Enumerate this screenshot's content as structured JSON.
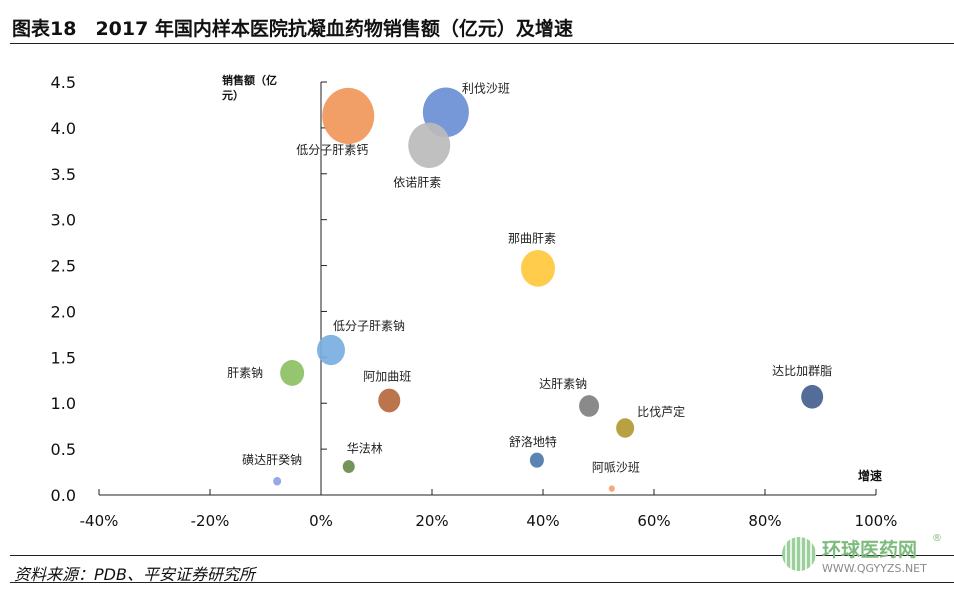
{
  "header": {
    "title": "图表18　2017 年国内样本医院抗凝血药物销售额（亿元）及增速"
  },
  "footer": {
    "source": "资料来源：PDB、平安证券研究所"
  },
  "watermark": {
    "name": "环球医药网",
    "url": "WWW.QGYYZS.NET",
    "reg": "®"
  },
  "chart_data": {
    "type": "scatter",
    "subtype": "bubble",
    "title": "",
    "xlabel": "增速",
    "ylabel": "销售额（亿元）",
    "ylabel_lines": [
      "销售额（亿",
      "元）"
    ],
    "xlim": [
      -0.4,
      1.0
    ],
    "ylim": [
      0,
      4.5
    ],
    "xticks": [
      "-40%",
      "-20%",
      "0%",
      "20%",
      "40%",
      "60%",
      "80%",
      "100%"
    ],
    "xtick_values": [
      -0.4,
      -0.2,
      0,
      0.2,
      0.4,
      0.6,
      0.8,
      1.0
    ],
    "yticks": [
      "0.0",
      "0.5",
      "1.0",
      "1.5",
      "2.0",
      "2.5",
      "3.0",
      "3.5",
      "4.0",
      "4.5"
    ],
    "ytick_values": [
      0,
      0.5,
      1,
      1.5,
      2,
      2.5,
      3,
      3.5,
      4,
      4.5
    ],
    "grid": false,
    "legend": "none",
    "points": [
      {
        "name": "低分子肝素钙",
        "x": 0.049,
        "y": 4.13,
        "size": 26,
        "color": "#F0965A"
      },
      {
        "name": "利伐沙班",
        "x": 0.225,
        "y": 4.17,
        "size": 23,
        "color": "#6A8FD6"
      },
      {
        "name": "依诺肝素",
        "x": 0.195,
        "y": 3.81,
        "size": 21,
        "color": "#BBBBBB"
      },
      {
        "name": "那曲肝素",
        "x": 0.391,
        "y": 2.47,
        "size": 17,
        "color": "#FFC83C"
      },
      {
        "name": "低分子肝素钠",
        "x": 0.018,
        "y": 1.58,
        "size": 14,
        "color": "#7AAEE0"
      },
      {
        "name": "肝素钠",
        "x": -0.052,
        "y": 1.33,
        "size": 12,
        "color": "#8CC063"
      },
      {
        "name": "阿加曲班",
        "x": 0.123,
        "y": 1.03,
        "size": 11,
        "color": "#B5683C"
      },
      {
        "name": "达肝素钠",
        "x": 0.483,
        "y": 0.97,
        "size": 10,
        "color": "#808080"
      },
      {
        "name": "达比加群脂",
        "x": 0.885,
        "y": 1.07,
        "size": 11,
        "color": "#44608F"
      },
      {
        "name": "比伐芦定",
        "x": 0.548,
        "y": 0.73,
        "size": 9,
        "color": "#B39832"
      },
      {
        "name": "舒洛地特",
        "x": 0.389,
        "y": 0.38,
        "size": 7,
        "color": "#4D7AAB"
      },
      {
        "name": "华法林",
        "x": 0.05,
        "y": 0.31,
        "size": 6,
        "color": "#6A8A4E"
      },
      {
        "name": "磺达肝癸钠",
        "x": -0.079,
        "y": 0.15,
        "size": 4,
        "color": "#8AA4E0"
      },
      {
        "name": "阿哌沙班",
        "x": 0.524,
        "y": 0.07,
        "size": 3,
        "color": "#F4A270"
      }
    ]
  }
}
